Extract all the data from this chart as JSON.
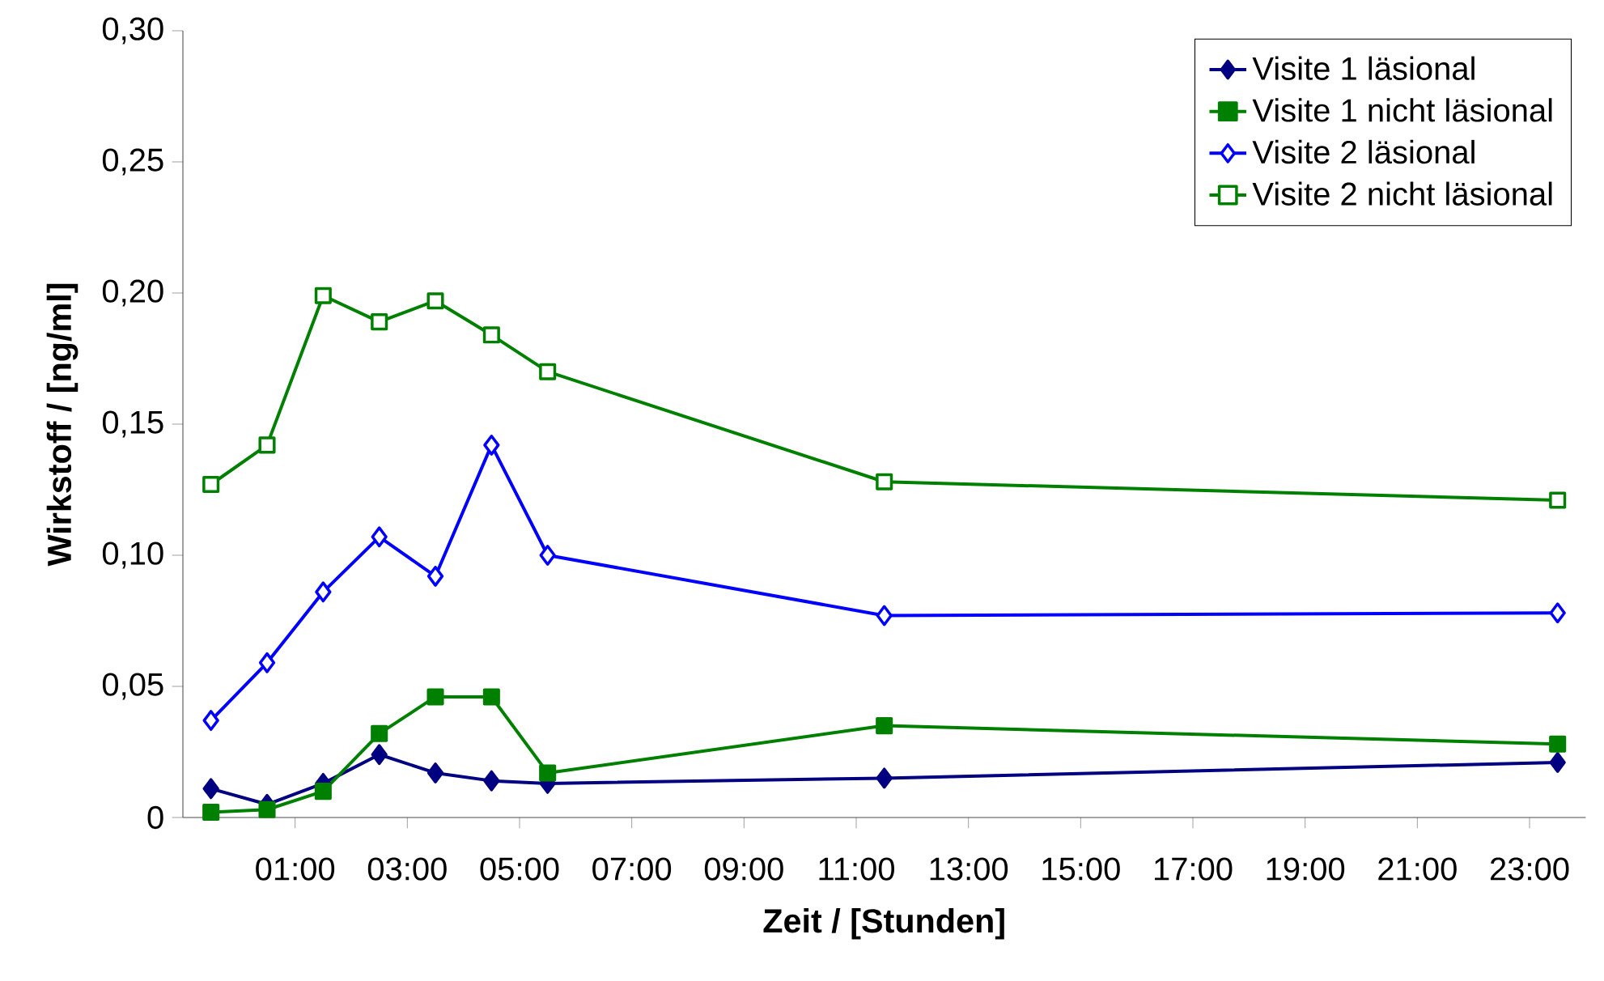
{
  "chart_data": {
    "type": "line",
    "xlabel": "Zeit / [Stunden]",
    "ylabel": "Wirkstoff / [ng/ml]",
    "x": [
      -0.5,
      0.5,
      1.5,
      2.5,
      3.5,
      4.5,
      5.5,
      11.5,
      23.5
    ],
    "series": [
      {
        "name": "Visite 1 läsional",
        "color": "#000080",
        "marker": "diamond",
        "values": [
          0.011,
          0.005,
          0.013,
          0.024,
          0.017,
          0.014,
          0.013,
          0.015,
          0.021
        ]
      },
      {
        "name": "Visite 1 nicht läsional",
        "color": "#008000",
        "marker": "square",
        "values": [
          0.002,
          0.003,
          0.01,
          0.032,
          0.046,
          0.046,
          0.017,
          0.035,
          0.028
        ]
      },
      {
        "name": "Visite 2 läsional",
        "color": "#0000ff",
        "marker": "diamond",
        "values": [
          0.037,
          0.059,
          0.086,
          0.107,
          0.092,
          0.142,
          0.1,
          0.077,
          0.078
        ]
      },
      {
        "name": "Visite 2 nicht läsional",
        "color": "#008000",
        "marker": "square",
        "values": [
          0.127,
          0.142,
          0.199,
          0.189,
          0.197,
          0.184,
          0.17,
          0.128,
          0.121
        ]
      }
    ],
    "xlim": [
      -1,
      24
    ],
    "xticks": [
      {
        "value": 1,
        "label": "01:00"
      },
      {
        "value": 3,
        "label": "03:00"
      },
      {
        "value": 5,
        "label": "05:00"
      },
      {
        "value": 7,
        "label": "07:00"
      },
      {
        "value": 9,
        "label": "09:00"
      },
      {
        "value": 11,
        "label": "11:00"
      },
      {
        "value": 13,
        "label": "13:00"
      },
      {
        "value": 15,
        "label": "15:00"
      },
      {
        "value": 17,
        "label": "17:00"
      },
      {
        "value": 19,
        "label": "19:00"
      },
      {
        "value": 21,
        "label": "21:00"
      },
      {
        "value": 23,
        "label": "23:00"
      }
    ],
    "ylim": [
      0,
      0.3
    ],
    "yticks": [
      0,
      {
        "value": 0.05,
        "label": "0,05"
      },
      {
        "value": 0.1,
        "label": "0,10"
      },
      {
        "value": 0.15,
        "label": "0,15"
      },
      {
        "value": 0.2,
        "label": "0,20"
      },
      {
        "value": 0.25,
        "label": "0,25"
      },
      {
        "value": 0.3,
        "label": "0,30"
      }
    ],
    "grid": false,
    "legend": "top right",
    "line_style": "solid"
  }
}
